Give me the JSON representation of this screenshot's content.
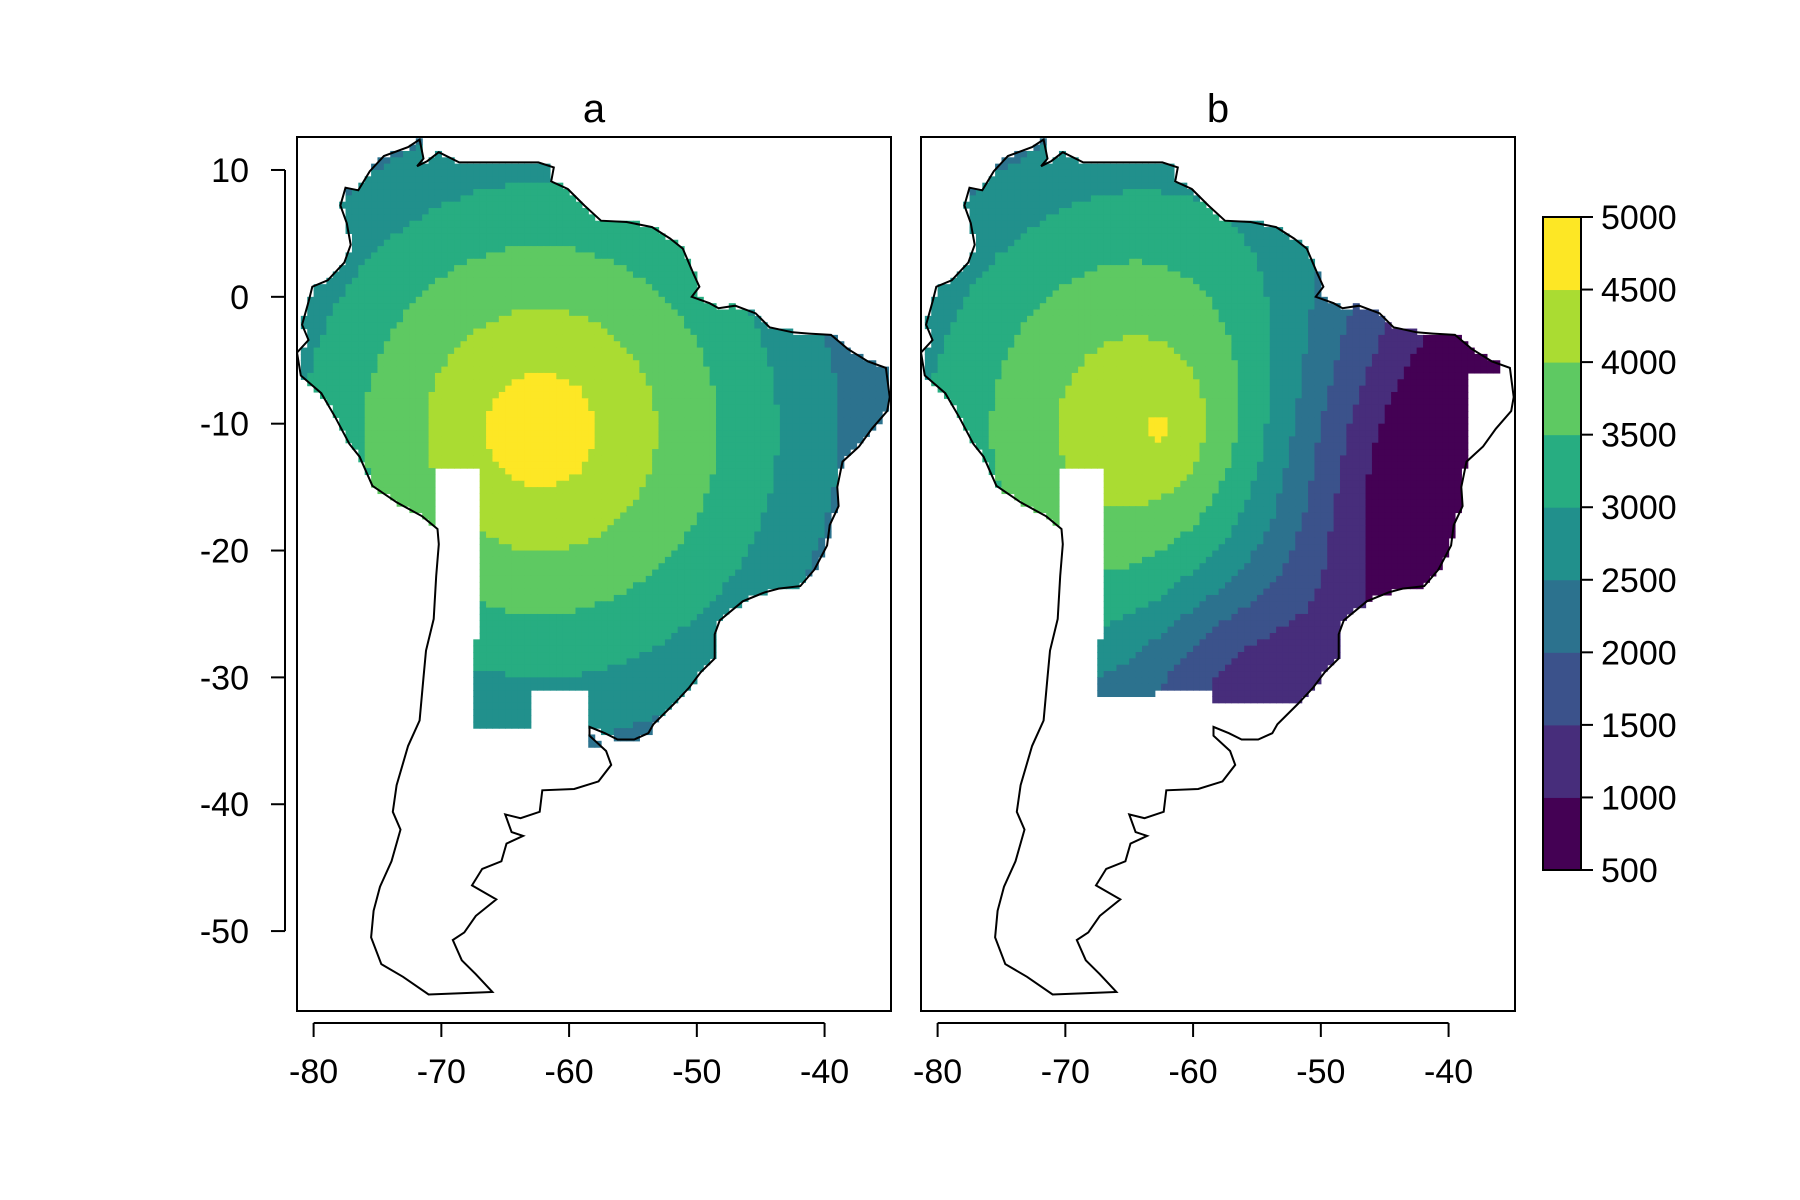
{
  "chart_data": [
    {
      "type": "heatmap",
      "title": "a",
      "xlabel": "",
      "ylabel": "",
      "xlim": [
        -81.3,
        -34.8
      ],
      "ylim": [
        -56.3,
        12.6
      ],
      "x_ticks": [
        -80,
        -70,
        -60,
        -50,
        -40
      ],
      "y_ticks": [
        10,
        0,
        -10,
        -20,
        -30,
        -40,
        -50
      ],
      "x_tick_labels": [
        "-80",
        "-70",
        "-60",
        "-50",
        "-40"
      ],
      "y_tick_labels": [
        "10",
        "0",
        "-10",
        "-20",
        "-30",
        "-40",
        "-50"
      ],
      "pattern": "concentric",
      "center": [
        -62,
        -10.5
      ],
      "zones": [
        {
          "range": "4500-5000",
          "lon": [
            -64,
            -57
          ],
          "lat": [
            -12.5,
            -8.5
          ]
        },
        {
          "range": "4000-4500",
          "lon": [
            -68,
            -54.5
          ],
          "lat": [
            -18,
            -5
          ]
        }
      ]
    },
    {
      "type": "heatmap",
      "title": "b",
      "xlabel": "",
      "ylabel": "",
      "xlim": [
        -81.3,
        -34.8
      ],
      "ylim": [
        -56.3,
        12.6
      ],
      "x_ticks": [
        -80,
        -70,
        -60,
        -50,
        -40
      ],
      "y_ticks": [
        10,
        0,
        -10,
        -20,
        -30,
        -40,
        -50
      ],
      "x_tick_labels": [
        "-80",
        "-70",
        "-60",
        "-50",
        "-40"
      ],
      "y_tick_labels": [
        "10",
        "0",
        "-10",
        "-20",
        "-30",
        "-40",
        "-50"
      ],
      "pattern": "concentric with low values toward the southeast",
      "center": [
        -62,
        -10.5
      ],
      "zones": [
        {
          "range": "4500-5000",
          "lon": [
            -64,
            -58
          ],
          "lat": [
            -14,
            -7
          ]
        },
        {
          "range": "500-1000",
          "lon": [
            -45,
            -38
          ],
          "lat": [
            -15,
            -11
          ]
        }
      ]
    }
  ],
  "legend": {
    "levels": [
      500,
      1000,
      1500,
      2000,
      2500,
      3000,
      3500,
      4000,
      4500,
      5000
    ],
    "labels": [
      "500",
      "1000",
      "1500",
      "2000",
      "2500",
      "3000",
      "3500",
      "4000",
      "4500",
      "5000"
    ],
    "colors": [
      "#440154",
      "#472d7b",
      "#3b528b",
      "#2c728e",
      "#21908c",
      "#27ad81",
      "#5ec962",
      "#aadc32",
      "#fde725"
    ]
  }
}
